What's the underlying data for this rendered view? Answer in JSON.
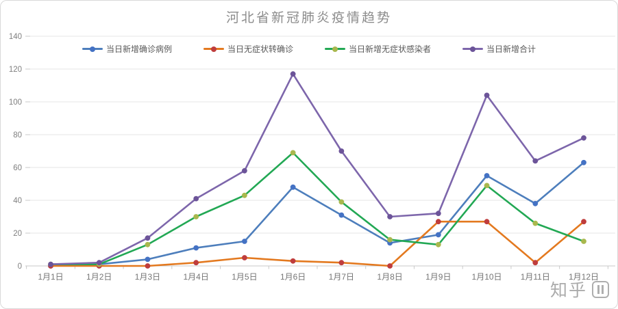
{
  "chart_data": {
    "type": "line",
    "title": "河北省新冠肺炎疫情趋势",
    "xlabel": "",
    "ylabel": "",
    "ylim": [
      0,
      140
    ],
    "ytick_step": 20,
    "grid": true,
    "legend_position": "top",
    "categories": [
      "1月1日",
      "1月2日",
      "1月3日",
      "1月4日",
      "1月5日",
      "1月6日",
      "1月7日",
      "1月8日",
      "1月9日",
      "1月10日",
      "1月11日",
      "1月12日"
    ],
    "series": [
      {
        "name": "当日新增确诊病例",
        "color": "#4d7ebc",
        "marker_color": "#4472c4",
        "values": [
          0,
          1,
          4,
          11,
          15,
          48,
          31,
          14,
          19,
          55,
          38,
          63
        ]
      },
      {
        "name": "当日无症状转确诊",
        "color": "#e3791f",
        "marker_color": "#bf3d3d",
        "values": [
          0,
          0,
          0,
          2,
          5,
          3,
          2,
          0,
          27,
          27,
          2,
          27
        ]
      },
      {
        "name": "当日新增无症状感染者",
        "color": "#22a854",
        "marker_color": "#a9b84e",
        "values": [
          1,
          1,
          13,
          30,
          43,
          69,
          39,
          16,
          13,
          49,
          26,
          15
        ]
      },
      {
        "name": "当日新增合计",
        "color": "#7d66ab",
        "marker_color": "#6c5499",
        "values": [
          1,
          2,
          17,
          41,
          58,
          117,
          70,
          30,
          32,
          104,
          64,
          78
        ]
      }
    ],
    "ytick_labels": [
      "0",
      "20",
      "40",
      "60",
      "80",
      "100",
      "120",
      "140"
    ]
  },
  "watermark": {
    "text": "知乎"
  }
}
